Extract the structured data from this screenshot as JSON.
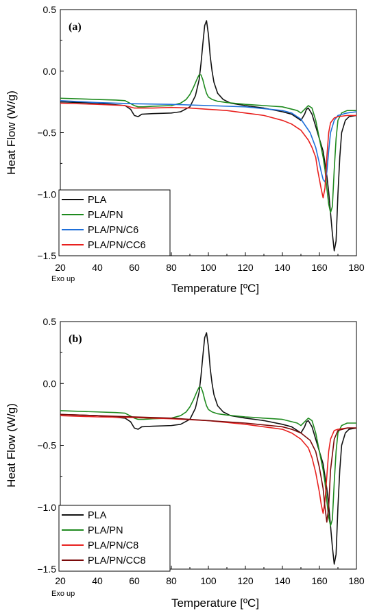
{
  "chart_data": [
    {
      "type": "line",
      "panel_label": "(a)",
      "xlabel": "Temperature [ºC]",
      "ylabel": "Heat Flow (W/g)",
      "note": "Exo up",
      "xlim": [
        20,
        180
      ],
      "ylim": [
        -1.5,
        0.5
      ],
      "xticks": [
        "20",
        "40",
        "60",
        "80",
        "100",
        "120",
        "140",
        "160",
        "180"
      ],
      "yticks": [
        "0.5",
        "0.0",
        "-0.5",
        "-1.0",
        "-1.5"
      ],
      "legend_position": "bottom-left",
      "series": [
        {
          "name": "PLA",
          "color": "#111111",
          "x": [
            20,
            40,
            55,
            58,
            60,
            62,
            64,
            70,
            80,
            85,
            90,
            93,
            95,
            96,
            97,
            98,
            99,
            100,
            101,
            102,
            103,
            105,
            108,
            112,
            120,
            130,
            140,
            145,
            148,
            150,
            152,
            153,
            154,
            156,
            158,
            160,
            162,
            164,
            165,
            166,
            167,
            168,
            169,
            170,
            171,
            172,
            174,
            176,
            180
          ],
          "y": [
            -0.25,
            -0.26,
            -0.28,
            -0.31,
            -0.36,
            -0.37,
            -0.35,
            -0.345,
            -0.34,
            -0.33,
            -0.29,
            -0.2,
            -0.07,
            0.06,
            0.22,
            0.37,
            0.41,
            0.3,
            0.12,
            0.0,
            -0.09,
            -0.18,
            -0.23,
            -0.26,
            -0.28,
            -0.3,
            -0.33,
            -0.35,
            -0.38,
            -0.4,
            -0.35,
            -0.31,
            -0.3,
            -0.35,
            -0.45,
            -0.55,
            -0.65,
            -0.85,
            -0.98,
            -1.15,
            -1.32,
            -1.46,
            -1.38,
            -1.0,
            -0.7,
            -0.5,
            -0.4,
            -0.37,
            -0.36
          ]
        },
        {
          "name": "PLA/PN",
          "color": "#1e8a1e",
          "x": [
            20,
            40,
            50,
            55,
            60,
            62,
            65,
            70,
            80,
            85,
            88,
            90,
            92,
            94,
            95,
            96,
            97,
            98,
            99,
            100,
            102,
            105,
            110,
            120,
            130,
            140,
            148,
            150,
            152,
            154,
            156,
            158,
            160,
            162,
            163,
            164,
            165,
            166,
            167,
            168,
            169,
            170,
            172,
            175,
            180
          ],
          "y": [
            -0.22,
            -0.23,
            -0.235,
            -0.24,
            -0.28,
            -0.29,
            -0.29,
            -0.285,
            -0.28,
            -0.26,
            -0.23,
            -0.19,
            -0.13,
            -0.06,
            -0.03,
            -0.03,
            -0.07,
            -0.13,
            -0.18,
            -0.21,
            -0.23,
            -0.245,
            -0.255,
            -0.27,
            -0.28,
            -0.29,
            -0.32,
            -0.34,
            -0.31,
            -0.28,
            -0.3,
            -0.4,
            -0.55,
            -0.7,
            -0.8,
            -0.95,
            -1.08,
            -1.15,
            -1.1,
            -0.8,
            -0.55,
            -0.4,
            -0.34,
            -0.32,
            -0.32
          ]
        },
        {
          "name": "PLA/PN/C6",
          "color": "#1e6fd9",
          "x": [
            20,
            40,
            60,
            80,
            100,
            120,
            140,
            145,
            150,
            155,
            158,
            160,
            161,
            162,
            163,
            164,
            165,
            166,
            168,
            170,
            175,
            180
          ],
          "y": [
            -0.24,
            -0.255,
            -0.265,
            -0.27,
            -0.28,
            -0.29,
            -0.32,
            -0.34,
            -0.39,
            -0.5,
            -0.62,
            -0.75,
            -0.82,
            -0.88,
            -0.9,
            -0.82,
            -0.65,
            -0.5,
            -0.4,
            -0.36,
            -0.34,
            -0.33
          ]
        },
        {
          "name": "PLA/PN/CC6",
          "color": "#e8201e",
          "x": [
            20,
            40,
            55,
            60,
            65,
            70,
            80,
            90,
            100,
            110,
            120,
            130,
            140,
            145,
            150,
            154,
            156,
            158,
            159,
            160,
            161,
            162,
            163,
            164,
            165,
            166,
            168,
            170,
            175,
            180
          ],
          "y": [
            -0.26,
            -0.27,
            -0.28,
            -0.3,
            -0.3,
            -0.3,
            -0.295,
            -0.3,
            -0.31,
            -0.32,
            -0.34,
            -0.36,
            -0.4,
            -0.43,
            -0.48,
            -0.56,
            -0.62,
            -0.7,
            -0.8,
            -0.88,
            -0.96,
            -1.03,
            -0.95,
            -0.7,
            -0.5,
            -0.42,
            -0.38,
            -0.37,
            -0.36,
            -0.36
          ]
        }
      ]
    },
    {
      "type": "line",
      "panel_label": "(b)",
      "xlabel": "Temperature [ºC]",
      "ylabel": "Heat Flow (W/g)",
      "note": "Exo up",
      "xlim": [
        20,
        180
      ],
      "ylim": [
        -1.5,
        0.5
      ],
      "xticks": [
        "20",
        "40",
        "60",
        "80",
        "100",
        "120",
        "140",
        "160",
        "180"
      ],
      "yticks": [
        "0.5",
        "0.0",
        "-0.5",
        "-1.0",
        "-1.5"
      ],
      "legend_position": "bottom-left",
      "series": [
        {
          "name": "PLA",
          "color": "#111111",
          "x": [
            20,
            40,
            55,
            58,
            60,
            62,
            64,
            70,
            80,
            85,
            90,
            93,
            95,
            96,
            97,
            98,
            99,
            100,
            101,
            102,
            103,
            105,
            108,
            112,
            120,
            130,
            140,
            145,
            148,
            150,
            152,
            153,
            154,
            156,
            158,
            160,
            162,
            164,
            165,
            166,
            167,
            168,
            169,
            170,
            171,
            172,
            174,
            176,
            180
          ],
          "y": [
            -0.25,
            -0.26,
            -0.28,
            -0.31,
            -0.36,
            -0.37,
            -0.35,
            -0.345,
            -0.34,
            -0.33,
            -0.29,
            -0.2,
            -0.07,
            0.06,
            0.22,
            0.37,
            0.41,
            0.3,
            0.12,
            0.0,
            -0.09,
            -0.18,
            -0.23,
            -0.26,
            -0.28,
            -0.3,
            -0.33,
            -0.35,
            -0.38,
            -0.4,
            -0.35,
            -0.31,
            -0.3,
            -0.35,
            -0.45,
            -0.55,
            -0.65,
            -0.85,
            -0.98,
            -1.15,
            -1.32,
            -1.46,
            -1.38,
            -1.0,
            -0.7,
            -0.5,
            -0.4,
            -0.37,
            -0.36
          ]
        },
        {
          "name": "PLA/PN",
          "color": "#1e8a1e",
          "x": [
            20,
            40,
            50,
            55,
            60,
            62,
            65,
            70,
            80,
            85,
            88,
            90,
            92,
            94,
            95,
            96,
            97,
            98,
            99,
            100,
            102,
            105,
            110,
            120,
            130,
            140,
            148,
            150,
            152,
            154,
            156,
            158,
            160,
            162,
            163,
            164,
            165,
            166,
            167,
            168,
            169,
            170,
            172,
            175,
            180
          ],
          "y": [
            -0.22,
            -0.23,
            -0.235,
            -0.24,
            -0.28,
            -0.29,
            -0.29,
            -0.285,
            -0.28,
            -0.26,
            -0.23,
            -0.19,
            -0.13,
            -0.06,
            -0.03,
            -0.03,
            -0.07,
            -0.13,
            -0.18,
            -0.21,
            -0.23,
            -0.245,
            -0.255,
            -0.27,
            -0.28,
            -0.29,
            -0.32,
            -0.34,
            -0.31,
            -0.28,
            -0.3,
            -0.4,
            -0.55,
            -0.7,
            -0.8,
            -0.95,
            -1.08,
            -1.15,
            -1.1,
            -0.8,
            -0.55,
            -0.4,
            -0.34,
            -0.32,
            -0.32
          ]
        },
        {
          "name": "PLA/PN/C8",
          "color": "#e8201e",
          "x": [
            20,
            40,
            60,
            80,
            100,
            120,
            140,
            145,
            150,
            154,
            156,
            158,
            160,
            161,
            162,
            163,
            164,
            165,
            166,
            168,
            170,
            175,
            180
          ],
          "y": [
            -0.26,
            -0.27,
            -0.275,
            -0.285,
            -0.3,
            -0.33,
            -0.37,
            -0.4,
            -0.45,
            -0.52,
            -0.6,
            -0.72,
            -0.88,
            -0.98,
            -1.05,
            -0.95,
            -0.75,
            -0.55,
            -0.45,
            -0.38,
            -0.37,
            -0.36,
            -0.36
          ]
        },
        {
          "name": "PLA/PN/CC8",
          "color": "#7a0a0a",
          "x": [
            20,
            40,
            60,
            80,
            100,
            120,
            140,
            145,
            150,
            155,
            158,
            160,
            162,
            163,
            164,
            165,
            166,
            168,
            170,
            175,
            180
          ],
          "y": [
            -0.25,
            -0.26,
            -0.27,
            -0.28,
            -0.3,
            -0.32,
            -0.35,
            -0.37,
            -0.4,
            -0.46,
            -0.55,
            -0.68,
            -0.85,
            -1.0,
            -1.12,
            -1.0,
            -0.7,
            -0.45,
            -0.38,
            -0.36,
            -0.36
          ]
        }
      ]
    }
  ]
}
